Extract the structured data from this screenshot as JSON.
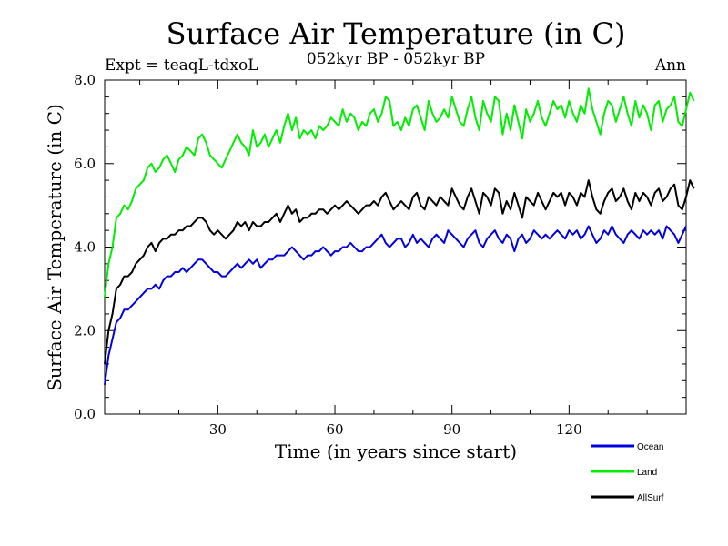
{
  "chart_data": {
    "type": "line",
    "title": "Surface Air Temperature (in C)",
    "subtitle_left": "Expt = teaqL-tdxoL",
    "subtitle_center": "052kyr BP - 052kyr BP",
    "subtitle_right": "Ann",
    "xlabel": "Time (in years since start)",
    "ylabel": "Surface Air Temperature (in C)",
    "xlim": [
      1,
      150
    ],
    "ylim": [
      0,
      8
    ],
    "xticks": [
      30,
      60,
      90,
      120
    ],
    "xtick_labels": [
      "30",
      "60",
      "90",
      "120"
    ],
    "yticks": [
      0,
      2,
      4,
      6,
      8
    ],
    "ytick_labels": [
      "0.0",
      "2.0",
      "4.0",
      "6.0",
      "8.0"
    ],
    "x_start": 1,
    "x_step": 1,
    "series": [
      {
        "name": "Ocean",
        "color": "#0000e0",
        "values": [
          0.7,
          1.4,
          1.8,
          2.2,
          2.3,
          2.5,
          2.5,
          2.6,
          2.7,
          2.8,
          2.9,
          3.0,
          3.0,
          3.1,
          3.0,
          3.2,
          3.3,
          3.3,
          3.4,
          3.4,
          3.5,
          3.4,
          3.5,
          3.6,
          3.7,
          3.7,
          3.6,
          3.5,
          3.4,
          3.4,
          3.3,
          3.3,
          3.4,
          3.5,
          3.6,
          3.5,
          3.6,
          3.7,
          3.6,
          3.7,
          3.5,
          3.6,
          3.7,
          3.7,
          3.8,
          3.8,
          3.8,
          3.9,
          4.0,
          3.9,
          3.8,
          3.7,
          3.8,
          3.8,
          3.9,
          3.9,
          4.0,
          3.9,
          3.8,
          3.9,
          3.9,
          4.0,
          4.0,
          4.1,
          4.0,
          3.9,
          3.9,
          4.0,
          4.0,
          4.1,
          4.2,
          4.3,
          4.1,
          4.0,
          4.1,
          4.2,
          4.2,
          4.0,
          4.1,
          4.3,
          4.1,
          4.2,
          4.1,
          4.0,
          4.2,
          4.3,
          4.2,
          4.1,
          4.4,
          4.3,
          4.2,
          4.1,
          4.0,
          4.2,
          4.3,
          4.4,
          4.1,
          4.0,
          4.2,
          4.3,
          4.4,
          4.2,
          4.1,
          4.3,
          4.2,
          3.9,
          4.2,
          4.3,
          4.1,
          4.2,
          4.4,
          4.3,
          4.2,
          4.3,
          4.2,
          4.3,
          4.4,
          4.3,
          4.2,
          4.4,
          4.3,
          4.4,
          4.2,
          4.3,
          4.5,
          4.3,
          4.1,
          4.2,
          4.4,
          4.3,
          4.5,
          4.3,
          4.2,
          4.1,
          4.3,
          4.4,
          4.3,
          4.2,
          4.4,
          4.3,
          4.4,
          4.3,
          4.4,
          4.2,
          4.5,
          4.4,
          4.3,
          4.1,
          4.3,
          4.5
        ]
      },
      {
        "name": "Land",
        "color": "#00ee00",
        "values": [
          2.8,
          3.6,
          4.0,
          4.7,
          4.8,
          5.0,
          4.9,
          5.1,
          5.4,
          5.5,
          5.6,
          5.9,
          6.0,
          5.8,
          5.9,
          6.1,
          6.2,
          6.0,
          5.8,
          6.1,
          6.2,
          6.4,
          6.3,
          6.2,
          6.6,
          6.7,
          6.5,
          6.2,
          6.1,
          6.0,
          5.9,
          6.1,
          6.3,
          6.5,
          6.7,
          6.5,
          6.4,
          6.2,
          6.8,
          6.4,
          6.5,
          6.7,
          6.4,
          6.6,
          6.8,
          6.5,
          6.9,
          7.2,
          6.8,
          7.1,
          6.6,
          6.8,
          6.7,
          6.8,
          6.6,
          6.9,
          6.8,
          6.9,
          7.1,
          7.0,
          6.9,
          7.3,
          7.0,
          7.2,
          7.1,
          6.8,
          7.0,
          6.9,
          7.2,
          7.3,
          7.0,
          7.2,
          7.6,
          7.5,
          6.9,
          7.0,
          6.8,
          7.1,
          6.9,
          7.3,
          7.4,
          7.1,
          6.8,
          7.5,
          7.2,
          7.0,
          7.1,
          7.3,
          7.1,
          7.6,
          7.3,
          7.0,
          6.9,
          7.3,
          7.6,
          7.1,
          6.8,
          7.5,
          7.2,
          7.0,
          7.6,
          7.5,
          6.7,
          7.2,
          6.8,
          7.4,
          7.0,
          6.6,
          7.3,
          7.0,
          7.2,
          7.5,
          7.1,
          6.9,
          7.2,
          7.5,
          7.3,
          7.4,
          7.1,
          7.5,
          7.2,
          7.0,
          7.4,
          7.2,
          7.8,
          7.3,
          7.0,
          6.7,
          7.2,
          7.5,
          7.4,
          7.0,
          7.3,
          7.6,
          7.2,
          6.9,
          7.5,
          7.1,
          7.4,
          7.2,
          6.8,
          7.4,
          7.5,
          7.0,
          7.3,
          7.4,
          7.6,
          7.0,
          6.9,
          7.3,
          7.7,
          7.5
        ]
      },
      {
        "name": "AllSurf",
        "color": "#000000",
        "values": [
          1.2,
          2.0,
          2.4,
          3.0,
          3.1,
          3.3,
          3.3,
          3.4,
          3.6,
          3.7,
          3.8,
          4.0,
          4.1,
          3.9,
          4.1,
          4.2,
          4.2,
          4.3,
          4.3,
          4.4,
          4.4,
          4.5,
          4.5,
          4.6,
          4.7,
          4.7,
          4.6,
          4.4,
          4.3,
          4.4,
          4.3,
          4.2,
          4.3,
          4.4,
          4.6,
          4.5,
          4.6,
          4.4,
          4.6,
          4.5,
          4.5,
          4.6,
          4.6,
          4.7,
          4.8,
          4.6,
          4.8,
          5.0,
          4.8,
          4.9,
          4.6,
          4.7,
          4.7,
          4.8,
          4.8,
          4.9,
          4.9,
          4.8,
          4.9,
          5.0,
          4.9,
          5.0,
          5.1,
          5.0,
          4.9,
          4.8,
          4.9,
          5.0,
          5.0,
          5.1,
          5.0,
          5.2,
          5.3,
          5.1,
          4.9,
          5.0,
          5.1,
          5.0,
          4.9,
          5.2,
          5.3,
          5.0,
          4.9,
          5.2,
          5.1,
          5.0,
          5.2,
          5.1,
          5.0,
          5.4,
          5.2,
          5.0,
          4.9,
          5.2,
          5.4,
          5.1,
          4.8,
          5.3,
          5.2,
          5.0,
          5.4,
          5.3,
          4.8,
          5.1,
          4.9,
          5.3,
          5.0,
          4.7,
          5.2,
          5.1,
          5.0,
          5.3,
          5.1,
          4.9,
          5.1,
          5.3,
          5.2,
          5.3,
          5.0,
          5.3,
          5.2,
          5.0,
          5.3,
          5.2,
          5.6,
          5.2,
          4.9,
          4.8,
          5.1,
          5.3,
          5.4,
          5.1,
          5.2,
          5.4,
          5.1,
          4.9,
          5.3,
          5.1,
          5.3,
          5.2,
          5.0,
          5.3,
          5.4,
          5.1,
          5.2,
          5.4,
          5.5,
          5.0,
          4.9,
          5.2,
          5.6,
          5.4
        ]
      }
    ],
    "legend": [
      "Ocean",
      "Land",
      "AllSurf"
    ],
    "legend_position": "bottom-right"
  }
}
